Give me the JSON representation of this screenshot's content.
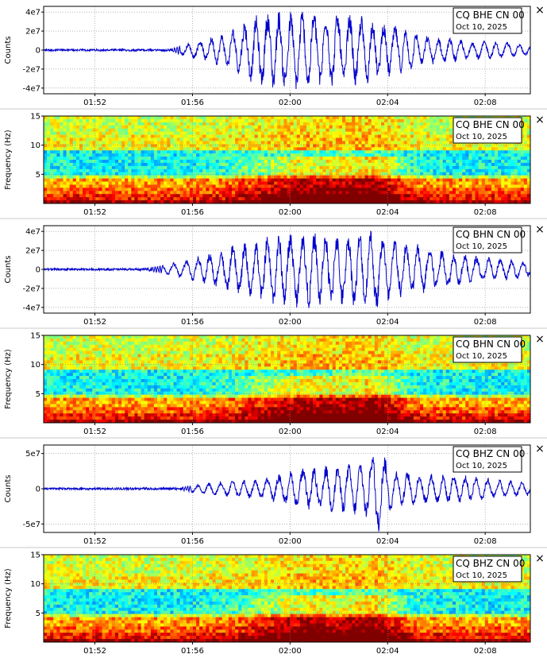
{
  "close_glyph": "×",
  "colors": {
    "trace": "#0000cc",
    "separator": "#c8c8c8",
    "grid": "#888888"
  },
  "panels": [
    {
      "id": "bhe-wave",
      "kind": "waveform",
      "station": "CQ BHE CN 00",
      "date": "Oct 10, 2025",
      "ylabel": "Counts",
      "yticks": [
        "4e7",
        "2e7",
        "0",
        "-2e7",
        "-4e7"
      ],
      "ytick_values": [
        40000000,
        20000000,
        0,
        -20000000,
        -40000000
      ],
      "ylim": [
        -46000000,
        46000000
      ]
    },
    {
      "id": "bhe-spec",
      "kind": "spectrogram",
      "station": "CQ BHE CN 00",
      "date": "Oct 10, 2025",
      "ylabel": "Frequency (Hz)",
      "yticks": [
        "15",
        "10",
        "5"
      ],
      "ytick_values": [
        15,
        10,
        5
      ],
      "ylim": [
        0,
        15
      ]
    },
    {
      "id": "bhn-wave",
      "kind": "waveform",
      "station": "CQ BHN CN 00",
      "date": "Oct 10, 2025",
      "ylabel": "Counts",
      "yticks": [
        "4e7",
        "2e7",
        "0",
        "-2e7",
        "-4e7"
      ],
      "ytick_values": [
        40000000,
        20000000,
        0,
        -20000000,
        -40000000
      ],
      "ylim": [
        -46000000,
        46000000
      ]
    },
    {
      "id": "bhn-spec",
      "kind": "spectrogram",
      "station": "CQ BHN CN 00",
      "date": "Oct 10, 2025",
      "ylabel": "Frequency (Hz)",
      "yticks": [
        "15",
        "10",
        "5"
      ],
      "ytick_values": [
        15,
        10,
        5
      ],
      "ylim": [
        0,
        15
      ]
    },
    {
      "id": "bhz-wave",
      "kind": "waveform",
      "station": "CQ BHZ CN 00",
      "date": "Oct 10, 2025",
      "ylabel": "Counts",
      "yticks": [
        "5e7",
        "0",
        "-5e7"
      ],
      "ytick_values": [
        50000000,
        0,
        -50000000
      ],
      "ylim": [
        -62000000,
        62000000
      ]
    },
    {
      "id": "bhz-spec",
      "kind": "spectrogram",
      "station": "CQ BHZ CN 00",
      "date": "Oct 10, 2025",
      "ylabel": "Frequency (Hz)",
      "yticks": [
        "15",
        "10",
        "5"
      ],
      "ytick_values": [
        15,
        10,
        5
      ],
      "ylim": [
        0,
        15
      ]
    }
  ],
  "chart_data": {
    "type": "line",
    "x_ticks": [
      "01:52",
      "01:56",
      "02:00",
      "02:04",
      "02:08"
    ],
    "x_tick_minutes": [
      112,
      116,
      120,
      124,
      128
    ],
    "xlim_minutes": [
      109.9,
      129.85
    ],
    "grid": true,
    "series": [
      {
        "name": "CQ BHE CN 00",
        "kind": "waveform",
        "ylim": [
          -46000000,
          46000000
        ],
        "envelope": [
          [
            109.9,
            1500000
          ],
          [
            115,
            1500000
          ],
          [
            115.8,
            7000000
          ],
          [
            116.5,
            12000000
          ],
          [
            117.5,
            20000000
          ],
          [
            118.5,
            36000000
          ],
          [
            119.2,
            42000000
          ],
          [
            120.5,
            43000000
          ],
          [
            121.8,
            40000000
          ],
          [
            123,
            38000000
          ],
          [
            124.2,
            28000000
          ],
          [
            125.5,
            16000000
          ],
          [
            127,
            12000000
          ],
          [
            128.5,
            9000000
          ],
          [
            129.85,
            6000000
          ]
        ]
      },
      {
        "name": "CQ BHN CN 00",
        "kind": "waveform",
        "ylim": [
          -46000000,
          46000000
        ],
        "envelope": [
          [
            109.9,
            1500000
          ],
          [
            114,
            1500000
          ],
          [
            115,
            6000000
          ],
          [
            116,
            12000000
          ],
          [
            117,
            20000000
          ],
          [
            118,
            28000000
          ],
          [
            119,
            36000000
          ],
          [
            120,
            40000000
          ],
          [
            121,
            41000000
          ],
          [
            122.5,
            40000000
          ],
          [
            123.5,
            44000000
          ],
          [
            124.5,
            32000000
          ],
          [
            126,
            22000000
          ],
          [
            127.5,
            15000000
          ],
          [
            129.85,
            8000000
          ]
        ]
      },
      {
        "name": "CQ BHZ CN 00",
        "kind": "waveform",
        "ylim": [
          -62000000,
          62000000
        ],
        "envelope": [
          [
            109.9,
            2000000
          ],
          [
            115.5,
            2500000
          ],
          [
            116.5,
            8000000
          ],
          [
            117.5,
            12000000
          ],
          [
            119,
            16000000
          ],
          [
            120.3,
            28000000
          ],
          [
            121.5,
            34000000
          ],
          [
            122.5,
            36000000
          ],
          [
            123.2,
            45000000
          ],
          [
            123.6,
            65000000
          ],
          [
            124.2,
            28000000
          ],
          [
            125.5,
            22000000
          ],
          [
            127,
            20000000
          ],
          [
            128.5,
            14000000
          ],
          [
            129.85,
            10000000
          ]
        ]
      },
      {
        "name": "CQ BHE CN 00",
        "kind": "spectrogram",
        "ylim": [
          0,
          15
        ]
      },
      {
        "name": "CQ BHN CN 00",
        "kind": "spectrogram",
        "ylim": [
          0,
          15
        ]
      },
      {
        "name": "CQ BHZ CN 00",
        "kind": "spectrogram",
        "ylim": [
          0,
          15
        ]
      }
    ]
  }
}
